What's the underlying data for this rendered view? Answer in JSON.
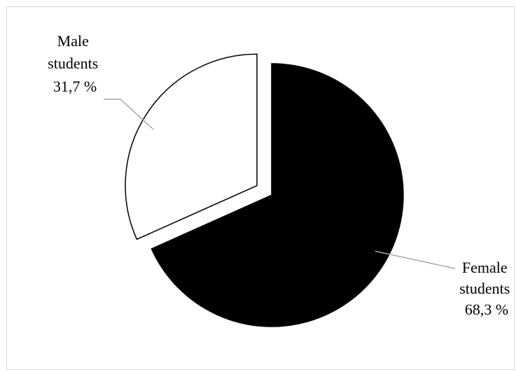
{
  "chart_data": {
    "type": "pie",
    "title": "",
    "slices": [
      {
        "name": "Female students",
        "value": 68.3,
        "label_lines": [
          "Female",
          "students",
          "68,3 %"
        ],
        "fill": "#000000",
        "exploded": false
      },
      {
        "name": "Male students",
        "value": 31.7,
        "label_lines": [
          "Male",
          "students",
          "31,7 %"
        ],
        "fill": "#ffffff",
        "exploded": true
      }
    ],
    "start_angle_deg": 0,
    "direction": "clockwise",
    "legend": "none",
    "label_style": "outside with leader lines",
    "colors": {
      "outline": "#000000",
      "leader_line": "#a6a6a6",
      "frame": "#d9d9d9"
    }
  }
}
